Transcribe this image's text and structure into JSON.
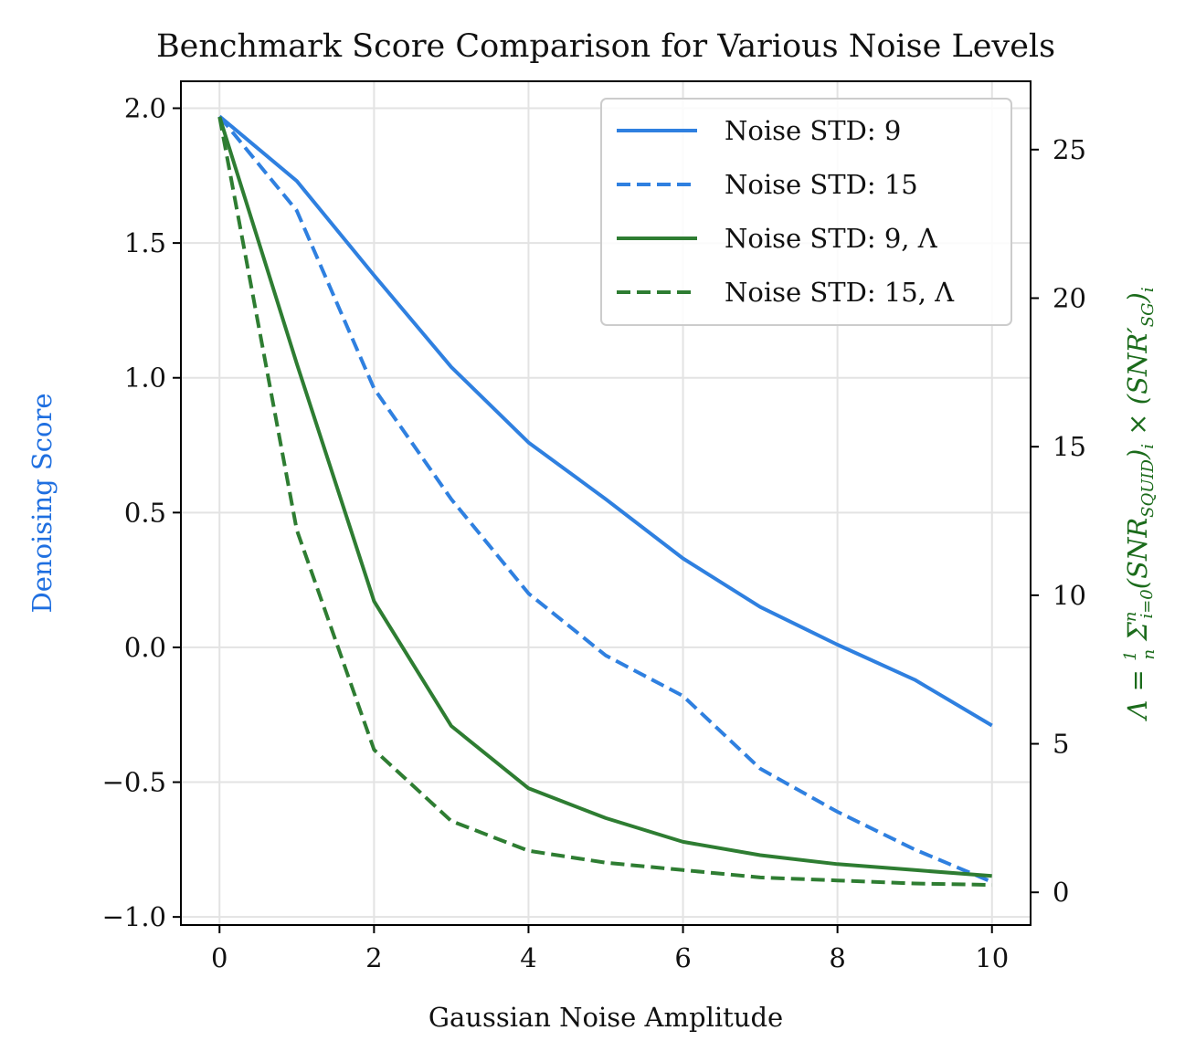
{
  "chart_data": {
    "type": "line",
    "title": "Benchmark Score Comparison for Various Noise Levels",
    "xlabel": "Gaussian Noise Amplitude",
    "ylabel_left": "Denoising Score",
    "ylabel_right_parts": [
      "Λ = ",
      "1",
      "n",
      " Σ",
      "n",
      "i=0",
      "(",
      "SNR",
      "SQUID",
      ")",
      "i",
      " × (",
      "SNR′",
      "SG",
      ")",
      "i"
    ],
    "xlim": [
      -0.5,
      10.5
    ],
    "ylim_left": [
      -1.03,
      2.1
    ],
    "ylim_right": [
      -1.1,
      27.3
    ],
    "xticks": [
      0,
      2,
      4,
      6,
      8,
      10
    ],
    "xtick_labels": [
      "0",
      "2",
      "4",
      "6",
      "8",
      "10"
    ],
    "yticks_left": [
      2.0,
      1.5,
      1.0,
      0.5,
      0.0,
      -0.5,
      -1.0
    ],
    "ytick_labels_left": [
      "2.0",
      "1.5",
      "1.0",
      "0.5",
      "0.0",
      "−0.5",
      "−1.0"
    ],
    "yticks_right": [
      0,
      5,
      10,
      15,
      20,
      25
    ],
    "ytick_labels_right": [
      "0",
      "5",
      "10",
      "15",
      "20",
      "25"
    ],
    "grid": true,
    "legend_position": "top-right",
    "colors": {
      "blue": "#2f80e0",
      "green": "#2e7d32",
      "left_label": "#1f6fe0",
      "right_label": "#1b6b1b"
    },
    "x": [
      0,
      1,
      2,
      3,
      4,
      5,
      6,
      7,
      8,
      9,
      10
    ],
    "series": [
      {
        "name": "Noise STD: 9",
        "axis": "left",
        "dashed": false,
        "color": "#2f80e0",
        "values": [
          1.97,
          1.73,
          1.38,
          1.04,
          0.76,
          0.55,
          0.33,
          0.15,
          0.01,
          -0.12,
          -0.29
        ]
      },
      {
        "name": "Noise STD: 15",
        "axis": "left",
        "dashed": true,
        "color": "#2f80e0",
        "values": [
          1.97,
          1.62,
          0.96,
          0.55,
          0.2,
          -0.03,
          -0.18,
          -0.45,
          -0.61,
          -0.75,
          -0.87
        ]
      },
      {
        "name": "Noise STD: 9, Λ",
        "axis": "right",
        "dashed": false,
        "color": "#2e7d32",
        "values": [
          26.1,
          17.8,
          9.8,
          5.6,
          3.5,
          2.5,
          1.7,
          1.25,
          0.95,
          0.75,
          0.55
        ]
      },
      {
        "name": "Noise STD: 15, Λ",
        "axis": "right",
        "dashed": true,
        "color": "#2e7d32",
        "values": [
          26.1,
          12.2,
          4.8,
          2.4,
          1.4,
          1.0,
          0.75,
          0.5,
          0.4,
          0.3,
          0.25
        ]
      }
    ]
  }
}
